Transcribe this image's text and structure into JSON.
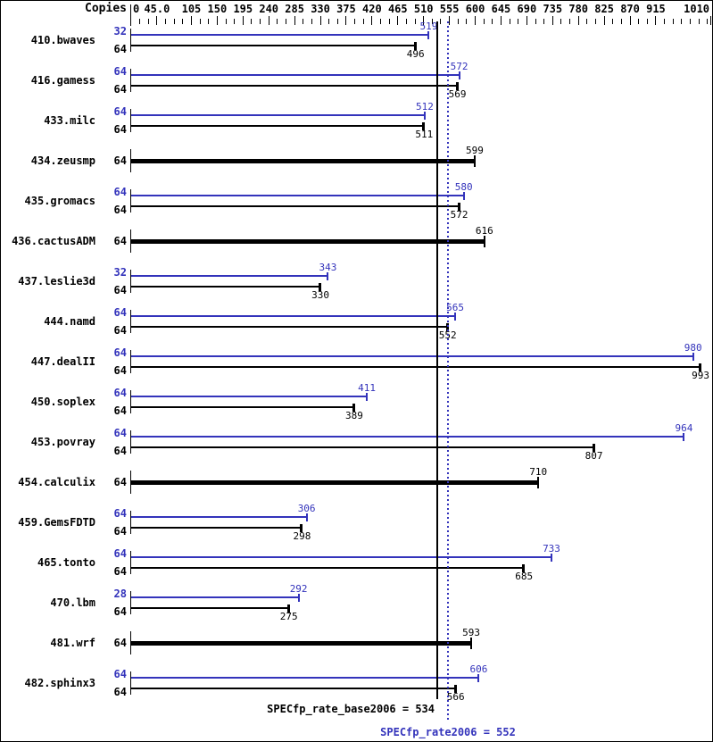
{
  "chart_data": {
    "type": "bar",
    "orientation": "horizontal",
    "title": "",
    "axis": {
      "label": "Copies",
      "min": 0,
      "max": 1010,
      "minor_tick_interval": 15,
      "tick_labels": [
        {
          "text": "0",
          "value": 0
        },
        {
          "text": "45.0",
          "value": 45
        },
        {
          "text": "105",
          "value": 105
        },
        {
          "text": "150",
          "value": 150
        },
        {
          "text": "195",
          "value": 195
        },
        {
          "text": "240",
          "value": 240
        },
        {
          "text": "285",
          "value": 285
        },
        {
          "text": "330",
          "value": 330
        },
        {
          "text": "375",
          "value": 375
        },
        {
          "text": "420",
          "value": 420
        },
        {
          "text": "465",
          "value": 465
        },
        {
          "text": "510",
          "value": 510
        },
        {
          "text": "555",
          "value": 555
        },
        {
          "text": "600",
          "value": 600
        },
        {
          "text": "645",
          "value": 645
        },
        {
          "text": "690",
          "value": 690
        },
        {
          "text": "735",
          "value": 735
        },
        {
          "text": "780",
          "value": 780
        },
        {
          "text": "825",
          "value": 825
        },
        {
          "text": "870",
          "value": 870
        },
        {
          "text": "915",
          "value": 915
        },
        {
          "text": "1010",
          "value": 1010
        }
      ]
    },
    "colors": {
      "peak": "#3333bb",
      "base": "#000000"
    },
    "benchmarks": [
      {
        "name": "410.bwaves",
        "bars": [
          {
            "kind": "peak",
            "copies": "32",
            "value": 519
          },
          {
            "kind": "base",
            "copies": "64",
            "value": 496
          }
        ]
      },
      {
        "name": "416.gamess",
        "bars": [
          {
            "kind": "peak",
            "copies": "64",
            "value": 572
          },
          {
            "kind": "base",
            "copies": "64",
            "value": 569
          }
        ]
      },
      {
        "name": "433.milc",
        "bars": [
          {
            "kind": "peak",
            "copies": "64",
            "value": 512
          },
          {
            "kind": "base",
            "copies": "64",
            "value": 511
          }
        ]
      },
      {
        "name": "434.zeusmp",
        "bars": [
          {
            "kind": "base_only",
            "copies": "64",
            "value": 599
          }
        ]
      },
      {
        "name": "435.gromacs",
        "bars": [
          {
            "kind": "peak",
            "copies": "64",
            "value": 580
          },
          {
            "kind": "base",
            "copies": "64",
            "value": 572
          }
        ]
      },
      {
        "name": "436.cactusADM",
        "bars": [
          {
            "kind": "base_only",
            "copies": "64",
            "value": 616
          }
        ]
      },
      {
        "name": "437.leslie3d",
        "bars": [
          {
            "kind": "peak",
            "copies": "32",
            "value": 343
          },
          {
            "kind": "base",
            "copies": "64",
            "value": 330
          }
        ]
      },
      {
        "name": "444.namd",
        "bars": [
          {
            "kind": "peak",
            "copies": "64",
            "value": 565
          },
          {
            "kind": "base",
            "copies": "64",
            "value": 552
          }
        ]
      },
      {
        "name": "447.dealII",
        "bars": [
          {
            "kind": "peak",
            "copies": "64",
            "value": 980
          },
          {
            "kind": "base",
            "copies": "64",
            "value": 993
          }
        ]
      },
      {
        "name": "450.soplex",
        "bars": [
          {
            "kind": "peak",
            "copies": "64",
            "value": 411
          },
          {
            "kind": "base",
            "copies": "64",
            "value": 389
          }
        ]
      },
      {
        "name": "453.povray",
        "bars": [
          {
            "kind": "peak",
            "copies": "64",
            "value": 964
          },
          {
            "kind": "base",
            "copies": "64",
            "value": 807
          }
        ]
      },
      {
        "name": "454.calculix",
        "bars": [
          {
            "kind": "base_only",
            "copies": "64",
            "value": 710
          }
        ]
      },
      {
        "name": "459.GemsFDTD",
        "bars": [
          {
            "kind": "peak",
            "copies": "64",
            "value": 306
          },
          {
            "kind": "base",
            "copies": "64",
            "value": 298
          }
        ]
      },
      {
        "name": "465.tonto",
        "bars": [
          {
            "kind": "peak",
            "copies": "64",
            "value": 733
          },
          {
            "kind": "base",
            "copies": "64",
            "value": 685
          }
        ]
      },
      {
        "name": "470.lbm",
        "bars": [
          {
            "kind": "peak",
            "copies": "28",
            "value": 292
          },
          {
            "kind": "base",
            "copies": "64",
            "value": 275
          }
        ]
      },
      {
        "name": "481.wrf",
        "bars": [
          {
            "kind": "base_only",
            "copies": "64",
            "value": 593
          }
        ]
      },
      {
        "name": "482.sphinx3",
        "bars": [
          {
            "kind": "peak",
            "copies": "64",
            "value": 606
          },
          {
            "kind": "base",
            "copies": "64",
            "value": 566
          }
        ]
      }
    ],
    "reference_lines": [
      {
        "name": "base_rate",
        "label": "SPECfp_rate_base2006 = 534",
        "value": 534,
        "style": "solid",
        "color": "#000000"
      },
      {
        "name": "peak_rate",
        "label": "SPECfp_rate2006 = 552",
        "value": 552,
        "style": "dotted",
        "color": "#3333bb"
      }
    ]
  }
}
